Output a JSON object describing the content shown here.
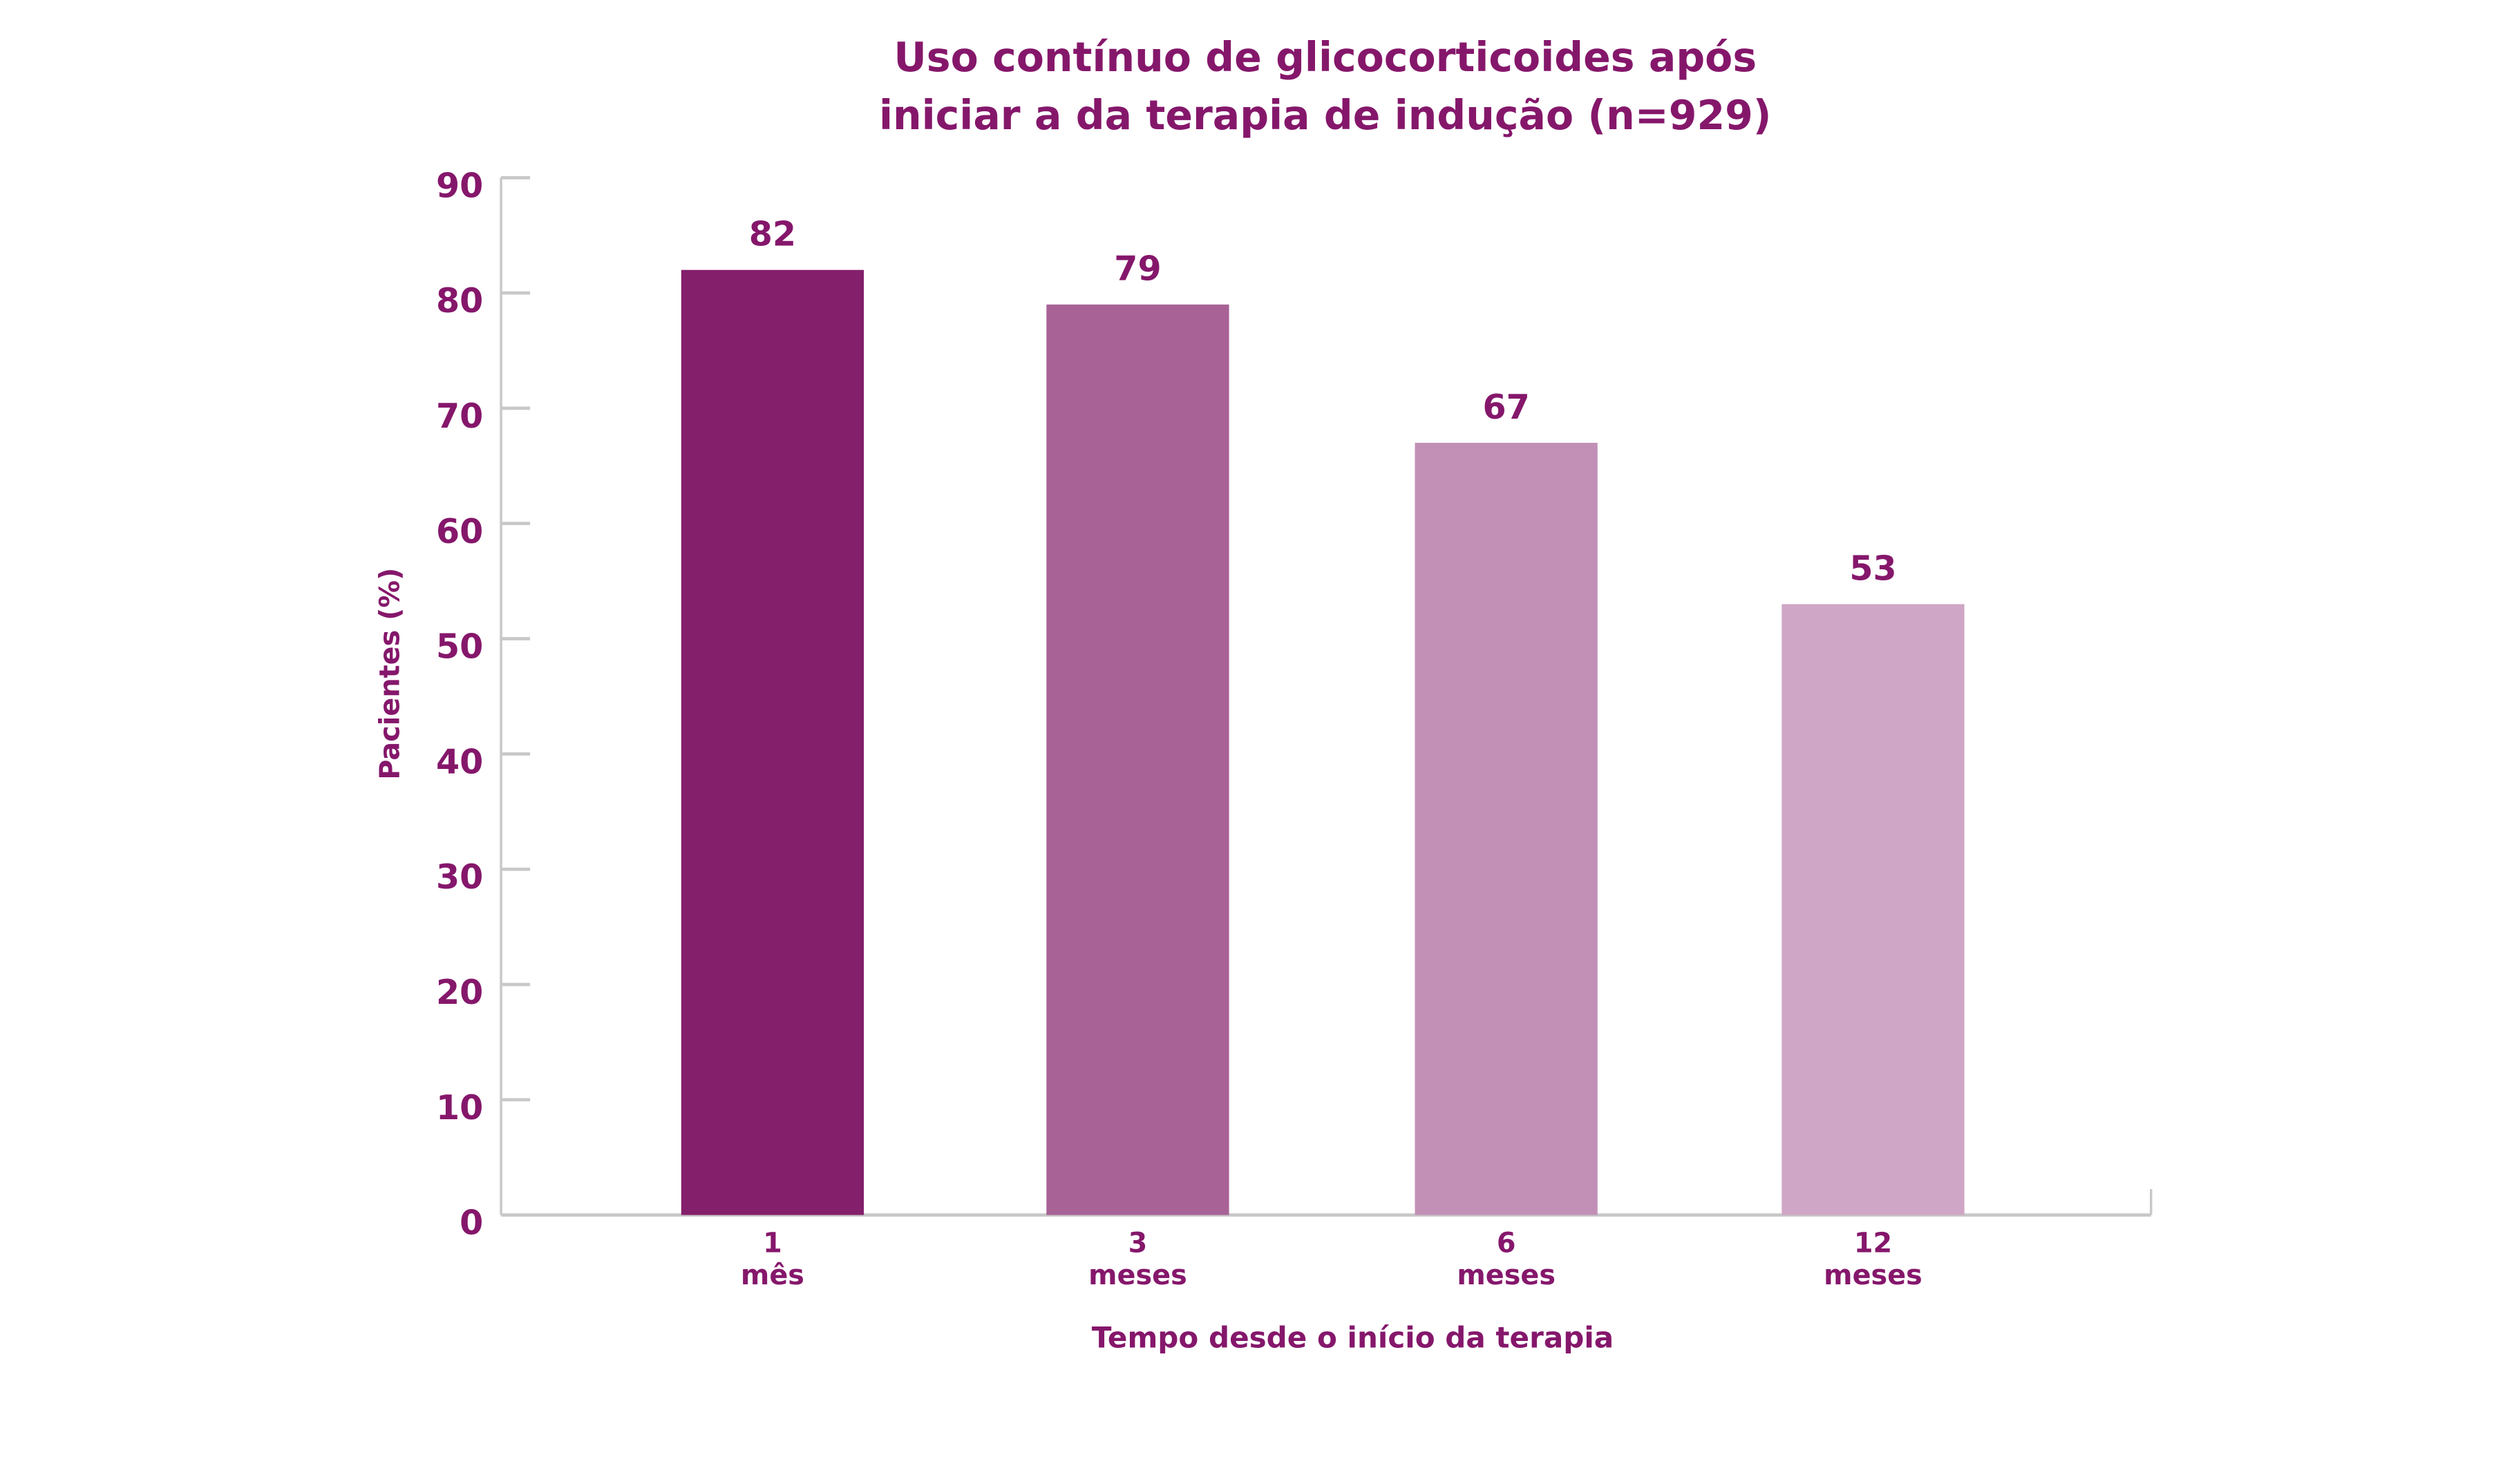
{
  "chart_data": {
    "type": "bar",
    "title": [
      "Uso contínuo de glicocorticoides após",
      "iniciar a da terapia de indução (n=929)"
    ],
    "xlabel": "Tempo desde o início da terapia",
    "ylabel": "Pacientes (%)",
    "ylim": [
      0,
      90
    ],
    "yticks": [
      0,
      10,
      20,
      30,
      40,
      50,
      60,
      70,
      80,
      90
    ],
    "grid": false,
    "categories": [
      [
        "1",
        "mês"
      ],
      [
        "3",
        "meses"
      ],
      [
        "6",
        "meses"
      ],
      [
        "12",
        "meses"
      ]
    ],
    "values": [
      82,
      79,
      67,
      53
    ],
    "data_labels": [
      "82",
      "79",
      "67",
      "53"
    ],
    "colors": [
      "#841f6b",
      "#a86296",
      "#c290b6",
      "#cfa6c6"
    ],
    "text_color": "#85176b",
    "axis_color": "#c8c8c8"
  }
}
